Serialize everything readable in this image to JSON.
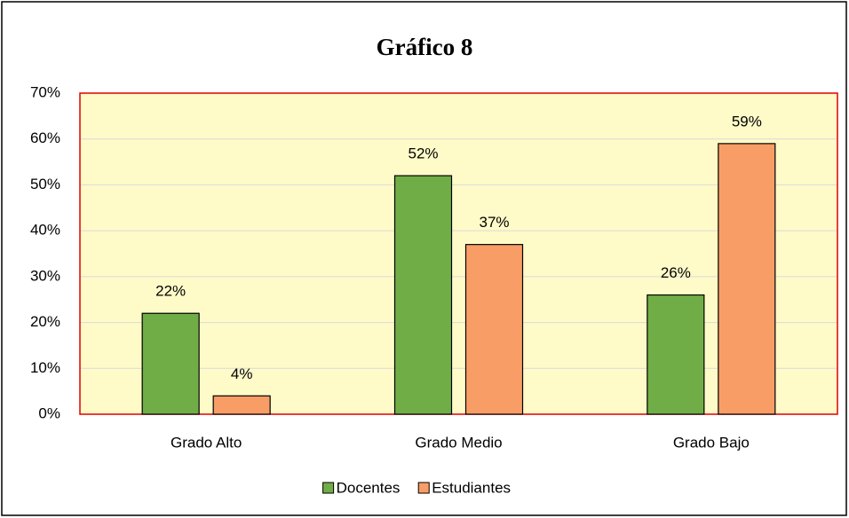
{
  "chart_data": {
    "type": "bar",
    "title": "Gráfico 8",
    "categories": [
      "Grado Alto",
      "Grado Medio",
      "Grado Bajo"
    ],
    "series": [
      {
        "name": "Docentes",
        "color": "#70ad47",
        "values": [
          22,
          52,
          26
        ],
        "value_labels": [
          "22%",
          "52%",
          "26%"
        ]
      },
      {
        "name": "Estudiantes",
        "color": "#f99d66",
        "values": [
          4,
          37,
          59
        ],
        "value_labels": [
          "4%",
          "37%",
          "59%"
        ]
      }
    ],
    "ylim": [
      0,
      70
    ],
    "yticks": [
      {
        "value": 0,
        "label": "0%"
      },
      {
        "value": 10,
        "label": "10%"
      },
      {
        "value": 20,
        "label": "20%"
      },
      {
        "value": 30,
        "label": "30%"
      },
      {
        "value": 40,
        "label": "40%"
      },
      {
        "value": 50,
        "label": "50%"
      },
      {
        "value": 60,
        "label": "60%"
      },
      {
        "value": 70,
        "label": "70%"
      }
    ],
    "grid": true,
    "legend": "bottom",
    "plot_background": "#fffbc8",
    "plot_border": "#e00000"
  }
}
